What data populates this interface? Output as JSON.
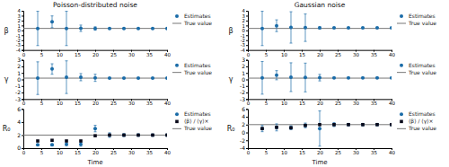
{
  "chart_data": [
    {
      "type": "errorbar",
      "title": "Poisson-distributed noise",
      "ylabel": "β",
      "x": [
        4,
        8,
        12,
        16,
        20,
        24,
        28,
        32,
        36,
        40
      ],
      "xlim": [
        0,
        40
      ],
      "xticks": [
        0,
        5,
        10,
        15,
        20,
        25,
        30,
        35,
        40
      ],
      "ylim": [
        -4,
        4
      ],
      "yticks": [
        -4,
        -3,
        -2,
        -1,
        0,
        1,
        2,
        3,
        4
      ],
      "grid": false,
      "legend": "right",
      "series": [
        {
          "name": "Estimates",
          "type": "scatter",
          "marker": "circle",
          "color": "#1b6ca8",
          "values": [
            0.4,
            1.75,
            0.4,
            0.43,
            0.38,
            0.4,
            0.4,
            0.4,
            0.4,
            0.4
          ],
          "errors": [
            3.5,
            1.2,
            3.5,
            0.65,
            0.35,
            0.06,
            0.06,
            0.06,
            0.06,
            0.06
          ]
        },
        {
          "name": "True value",
          "type": "hline",
          "line_style": "solid",
          "color": "#777777",
          "value": 0.4
        }
      ]
    },
    {
      "type": "errorbar",
      "ylabel": "γ",
      "x": [
        4,
        8,
        12,
        16,
        20,
        24,
        28,
        32,
        36,
        40
      ],
      "xlim": [
        0,
        40
      ],
      "xticks": [
        0,
        5,
        10,
        15,
        20,
        25,
        30,
        35,
        40
      ],
      "ylim": [
        -3,
        3
      ],
      "yticks": [
        -3,
        -2,
        -1,
        0,
        1,
        2,
        3
      ],
      "grid": false,
      "legend": "right",
      "series": [
        {
          "name": "Estimates",
          "type": "scatter",
          "marker": "circle",
          "color": "#1b6ca8",
          "values": [
            0.2,
            1.6,
            0.35,
            0.35,
            0.25,
            0.2,
            0.2,
            0.2,
            0.2,
            0.2
          ],
          "errors": [
            2.5,
            0.8,
            2.5,
            0.55,
            0.55,
            0.04,
            0.04,
            0.04,
            0.04,
            0.04
          ]
        },
        {
          "name": "True value",
          "type": "hline",
          "line_style": "solid",
          "color": "#777777",
          "value": 0.2
        }
      ]
    },
    {
      "type": "errorbar",
      "ylabel": "R₀",
      "xlabel": "Time",
      "x": [
        4,
        8,
        12,
        16,
        20,
        24,
        28,
        32,
        36,
        40
      ],
      "xlim": [
        0,
        40
      ],
      "xticks": [
        0,
        5,
        10,
        15,
        20,
        25,
        30,
        35,
        40
      ],
      "ylim": [
        0,
        6
      ],
      "yticks": [
        0,
        2,
        4,
        6
      ],
      "grid": false,
      "legend": "right",
      "series": [
        {
          "name": "Estimates",
          "type": "scatter",
          "marker": "circle",
          "color": "#1b6ca8",
          "values": [
            0.5,
            0.5,
            0.6,
            0.6,
            3.0,
            2.0,
            2.0,
            2.0,
            2.0,
            2.0
          ],
          "errors": [
            0.1,
            0.15,
            0.2,
            0.3,
            0.5,
            0.35,
            0.2,
            0.15,
            0.1,
            0.05
          ]
        },
        {
          "name": "⟨β⟩ / ⟨γ⟩×",
          "type": "scatter",
          "marker": "square",
          "color": "#0a0a1a",
          "values": [
            1.1,
            1.2,
            1.1,
            1.1,
            1.9,
            2.0,
            2.0,
            2.0,
            2.0,
            2.0
          ]
        },
        {
          "name": "True value",
          "type": "hline",
          "line_style": "solid",
          "color": "#777777",
          "value": 2.0
        }
      ]
    },
    {
      "type": "errorbar",
      "title": "Gaussian noise",
      "ylabel": "β",
      "x": [
        4,
        8,
        12,
        16,
        20,
        24,
        28,
        32,
        36,
        40
      ],
      "xlim": [
        0,
        40
      ],
      "xticks": [
        0,
        5,
        10,
        15,
        20,
        25,
        30,
        35,
        40
      ],
      "ylim": [
        -4,
        4
      ],
      "yticks": [
        -4,
        -3,
        -2,
        -1,
        0,
        1,
        2,
        3,
        4
      ],
      "grid": false,
      "legend": "right",
      "series": [
        {
          "name": "Estimates",
          "type": "scatter",
          "marker": "circle",
          "color": "#1b6ca8",
          "values": [
            0.4,
            0.95,
            0.6,
            0.55,
            0.5,
            0.5,
            0.5,
            0.5,
            0.5,
            0.5
          ],
          "errors": [
            3.5,
            1.2,
            3.2,
            2.8,
            0.2,
            0.08,
            0.06,
            0.06,
            0.06,
            0.06
          ]
        },
        {
          "name": "True value",
          "type": "hline",
          "line_style": "solid",
          "color": "#777777",
          "value": 0.4
        }
      ]
    },
    {
      "type": "errorbar",
      "ylabel": "γ",
      "x": [
        4,
        8,
        12,
        16,
        20,
        24,
        28,
        32,
        36,
        40
      ],
      "xlim": [
        0,
        40
      ],
      "xticks": [
        0,
        5,
        10,
        15,
        20,
        25,
        30,
        35,
        40
      ],
      "ylim": [
        -3,
        3
      ],
      "yticks": [
        -3,
        -2,
        -1,
        0,
        1,
        2,
        3
      ],
      "grid": false,
      "legend": "right",
      "series": [
        {
          "name": "Estimates",
          "type": "scatter",
          "marker": "circle",
          "color": "#1b6ca8",
          "values": [
            0.25,
            0.65,
            0.35,
            0.3,
            0.28,
            0.25,
            0.25,
            0.25,
            0.25,
            0.25
          ],
          "errors": [
            2.5,
            0.7,
            2.2,
            2.2,
            0.5,
            0.05,
            0.04,
            0.04,
            0.04,
            0.04
          ]
        },
        {
          "name": "True value",
          "type": "hline",
          "line_style": "solid",
          "color": "#777777",
          "value": 0.2
        }
      ]
    },
    {
      "type": "errorbar",
      "ylabel": "R₀",
      "xlabel": "Time",
      "x": [
        4,
        8,
        12,
        16,
        20,
        24,
        28,
        32,
        36,
        40
      ],
      "xlim": [
        0,
        40
      ],
      "xticks": [
        0,
        5,
        10,
        15,
        20,
        25,
        30,
        35,
        40
      ],
      "ylim": [
        -4,
        6
      ],
      "yticks": [
        -4,
        -2,
        0,
        2,
        4,
        6
      ],
      "grid": false,
      "legend": "right",
      "series": [
        {
          "name": "Estimates",
          "type": "scatter",
          "marker": "circle",
          "color": "#1b6ca8",
          "values": [
            1.0,
            1.3,
            1.2,
            1.8,
            1.0,
            2.0,
            2.0,
            2.0,
            2.0,
            2.0
          ],
          "errors": [
            0.8,
            0.9,
            0.5,
            0.6,
            4.5,
            0.5,
            0.2,
            0.2,
            0.15,
            0.06
          ]
        },
        {
          "name": "⟨β⟩ / ⟨γ⟩×",
          "type": "scatter",
          "marker": "square",
          "color": "#0a0a1a",
          "values": [
            1.0,
            1.3,
            1.2,
            1.8,
            2.0,
            2.0,
            2.0,
            2.0,
            2.0,
            2.0
          ]
        },
        {
          "name": "True value",
          "type": "hline",
          "line_style": "solid",
          "color": "#777777",
          "value": 2.0
        }
      ]
    }
  ]
}
